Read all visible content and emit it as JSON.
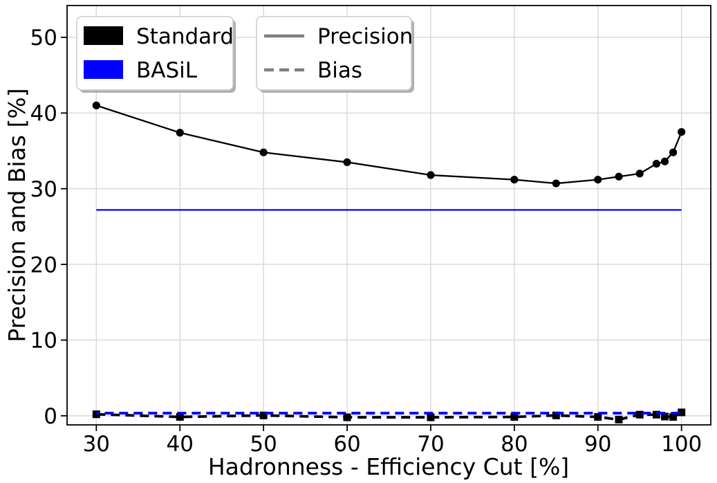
{
  "chart_data": {
    "type": "line",
    "title": "",
    "xlabel": "Hadronness - Efficiency Cut [%]",
    "ylabel": "Precision and Bias [%]",
    "xlim": [
      26.5,
      103.5
    ],
    "ylim": [
      -1.2,
      54.2
    ],
    "xticks": [
      30,
      40,
      50,
      60,
      70,
      80,
      90,
      100
    ],
    "yticks": [
      0,
      10,
      20,
      30,
      40,
      50
    ],
    "grid": true,
    "legend_position": "upper left",
    "x": [
      30,
      40,
      50,
      60,
      70,
      80,
      85,
      90,
      92.5,
      95,
      97,
      98,
      99,
      100
    ],
    "series": [
      {
        "name": "Standard Precision",
        "color": "#000000",
        "line": "solid",
        "marker": "circle",
        "values": [
          41.0,
          37.4,
          34.8,
          33.5,
          31.8,
          31.2,
          30.7,
          31.2,
          31.6,
          32.0,
          33.3,
          33.6,
          34.8,
          37.5
        ]
      },
      {
        "name": "BASiL Precision",
        "color": "#0000ff",
        "line": "solid",
        "marker": "none",
        "values": [
          27.2,
          27.2,
          27.2,
          27.2,
          27.2,
          27.2,
          27.2,
          27.2,
          27.2,
          27.2,
          27.2,
          27.2,
          27.2,
          27.2
        ]
      },
      {
        "name": "Standard Bias",
        "color": "#000000",
        "line": "dashed",
        "marker": "square",
        "values": [
          0.2,
          -0.15,
          0.05,
          -0.2,
          -0.2,
          -0.15,
          0.05,
          -0.15,
          -0.5,
          0.15,
          0.15,
          -0.1,
          -0.15,
          0.45
        ]
      },
      {
        "name": "BASiL Bias",
        "color": "#0000ff",
        "line": "dashed",
        "marker": "none",
        "values": [
          0.35,
          0.35,
          0.35,
          0.35,
          0.35,
          0.35,
          0.35,
          0.35,
          0.35,
          0.35,
          0.35,
          0.35,
          0.35,
          0.4
        ]
      }
    ]
  },
  "legend_series": {
    "entries": [
      {
        "label": "Standard",
        "swatch": "rect",
        "color": "#000000"
      },
      {
        "label": "BASiL",
        "swatch": "rect",
        "color": "#0000ff"
      }
    ]
  },
  "legend_metric": {
    "entries": [
      {
        "label": "Precision",
        "swatch": "solid-line",
        "color": "#808080"
      },
      {
        "label": "Bias",
        "swatch": "dashed-line",
        "color": "#808080"
      }
    ]
  },
  "colors": {
    "standard": "#000000",
    "basil": "#0000ff",
    "legend_line_gray": "#808080",
    "grid": "#d8d8d8",
    "spine": "#000000",
    "legend_border": "#cccccc",
    "legend_shadow": "#b0b0b0"
  }
}
